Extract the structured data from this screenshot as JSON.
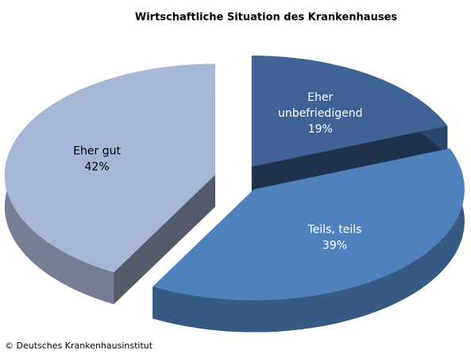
{
  "chart_data": {
    "type": "pie3d",
    "title": "Wirtschaftliche Situation des Krankenhauses",
    "categories": [
      "Eher unbefriedigend",
      "Teils, teils",
      "Eher gut"
    ],
    "values": [
      19,
      39,
      42
    ],
    "value_labels": [
      "19%",
      "39%",
      "42%"
    ],
    "colors": [
      "#3f6297",
      "#4f81bd",
      "#a6b6d6"
    ],
    "source": "© Deutsches  Krankenhausinstitut"
  }
}
